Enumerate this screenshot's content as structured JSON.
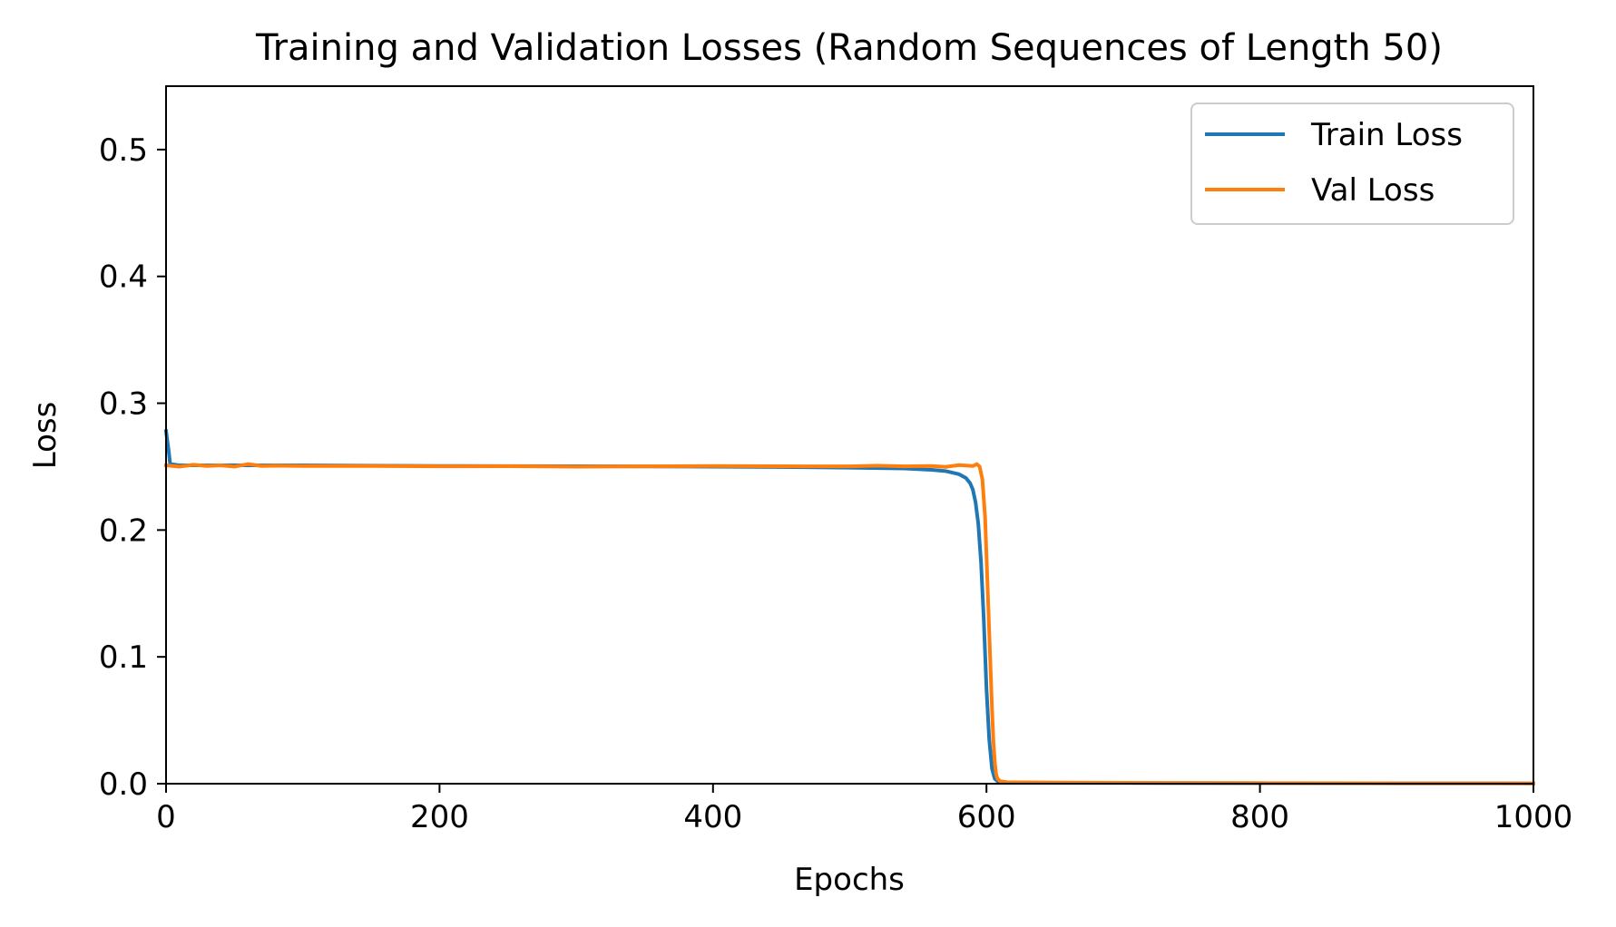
{
  "chart_data": {
    "type": "line",
    "title": "Training and Validation Losses (Random Sequences of Length 50)",
    "xlabel": "Epochs",
    "ylabel": "Loss",
    "xlim": [
      0,
      1000
    ],
    "ylim": [
      0,
      0.55
    ],
    "x_ticks": [
      "0",
      "200",
      "400",
      "600",
      "800",
      "1000"
    ],
    "y_ticks": [
      "0.0",
      "0.1",
      "0.2",
      "0.3",
      "0.4",
      "0.5"
    ],
    "grid": false,
    "legend_position": "top-right",
    "series": [
      {
        "name": "Train Loss",
        "color": "#1f77b4",
        "x": [
          0,
          2,
          3,
          10,
          100,
          200,
          300,
          400,
          450,
          500,
          540,
          560,
          570,
          580,
          585,
          588,
          590,
          592,
          594,
          596,
          598,
          600,
          602,
          604,
          606,
          608,
          612,
          620,
          700,
          800,
          900,
          1000
        ],
        "y": [
          0.278,
          0.262,
          0.252,
          0.251,
          0.251,
          0.2505,
          0.2503,
          0.25,
          0.2497,
          0.2492,
          0.2485,
          0.2475,
          0.2465,
          0.244,
          0.241,
          0.237,
          0.232,
          0.222,
          0.205,
          0.175,
          0.13,
          0.075,
          0.035,
          0.012,
          0.004,
          0.002,
          0.001,
          0.0008,
          0.0006,
          0.0004,
          0.0003,
          0.0002
        ]
      },
      {
        "name": "Val Loss",
        "color": "#ff7f0e",
        "x": [
          0,
          10,
          20,
          30,
          40,
          50,
          60,
          70,
          80,
          100,
          150,
          200,
          250,
          300,
          350,
          400,
          450,
          500,
          520,
          540,
          560,
          570,
          580,
          590,
          593,
          595,
          597,
          599,
          600,
          601,
          602,
          603,
          604,
          605,
          606,
          607,
          608,
          610,
          615,
          650,
          700,
          800,
          900,
          1000
        ],
        "y": [
          0.251,
          0.25,
          0.2515,
          0.2505,
          0.251,
          0.25,
          0.252,
          0.2505,
          0.2508,
          0.2505,
          0.2505,
          0.2502,
          0.2503,
          0.25,
          0.2502,
          0.2505,
          0.2503,
          0.2502,
          0.2508,
          0.2502,
          0.2505,
          0.2498,
          0.2512,
          0.2505,
          0.252,
          0.25,
          0.24,
          0.21,
          0.18,
          0.15,
          0.12,
          0.09,
          0.06,
          0.035,
          0.018,
          0.008,
          0.004,
          0.002,
          0.0012,
          0.0009,
          0.0007,
          0.0005,
          0.0003,
          0.0002
        ]
      }
    ]
  }
}
